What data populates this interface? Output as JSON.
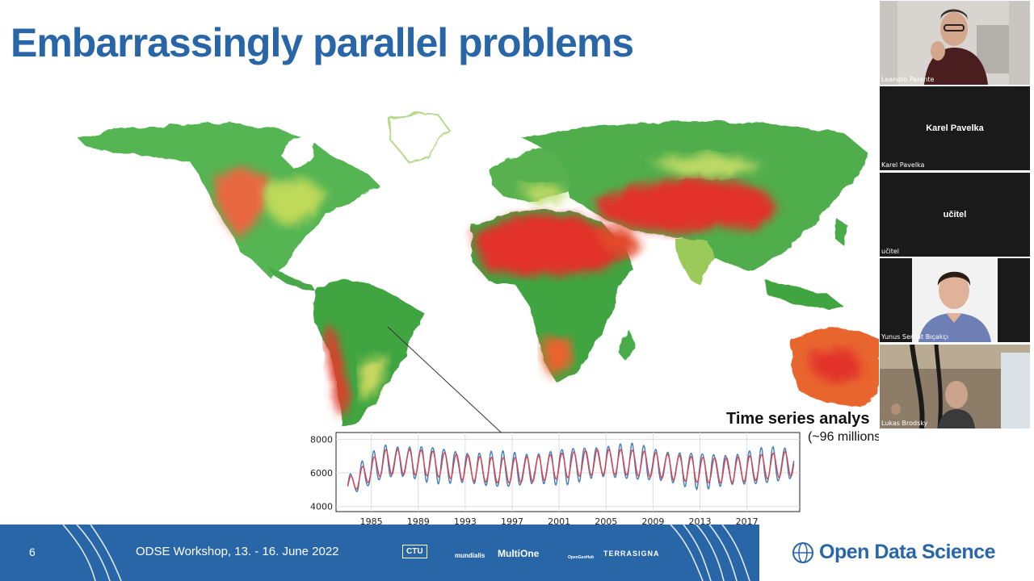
{
  "slide": {
    "title": "Embarrassingly parallel problems",
    "time_series_title": "Time series analys",
    "time_series_subtitle": "(~96 millions)"
  },
  "chart_data": {
    "type": "line",
    "x_ticks": [
      "1985",
      "1989",
      "1993",
      "1997",
      "2001",
      "2005",
      "2009",
      "2013",
      "2017"
    ],
    "y_ticks": [
      "4000",
      "6000",
      "8000"
    ],
    "ylim": [
      3700,
      8400
    ],
    "xlim": [
      1982,
      2021.5
    ],
    "series": [
      {
        "color": "#3f7fbf",
        "start_year": 1983,
        "end_year": 2021,
        "approx_min": 4000,
        "approx_max": 7800
      },
      {
        "color": "#d9434e",
        "start_year": 1983,
        "end_year": 2021,
        "approx_min": 3800,
        "approx_max": 7600
      }
    ],
    "grid": true
  },
  "footer": {
    "page_number": "6",
    "workshop": "ODSE Workshop, 13. - 16. June 2022",
    "partners": [
      "CTU",
      "mundialis",
      "MultiOne",
      "OpenGeoHub",
      "TERRASIGNA"
    ],
    "brand": "Open Data Science",
    "brand_color": "#2866a8"
  },
  "participants": [
    {
      "name": "Leandro Parente",
      "video": true
    },
    {
      "name": "Karel Pavelka",
      "display": "Karel Pavelka",
      "video": false
    },
    {
      "name": "učitel",
      "display": "učitel",
      "video": false
    },
    {
      "name": "Yunus Serhat Bıçakçı",
      "video": true
    },
    {
      "name": "Lukas Brodsky",
      "video": true
    }
  ]
}
